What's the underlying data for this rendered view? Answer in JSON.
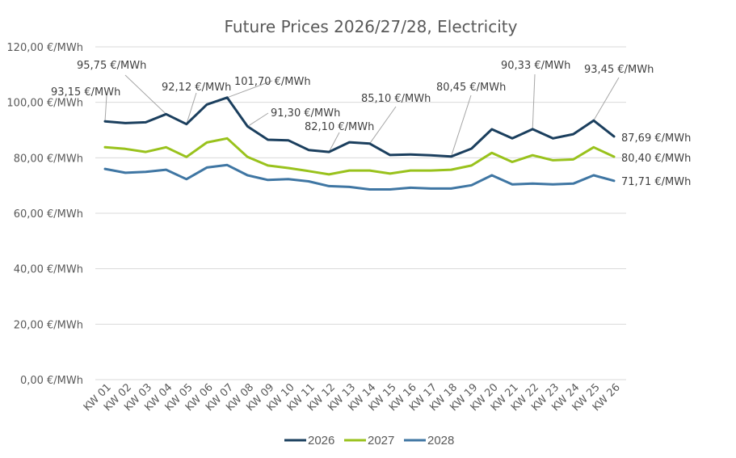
{
  "chart_data": {
    "type": "line",
    "title": "Future Prices 2026/27/28, Electricity",
    "xlabel": "",
    "ylabel": "",
    "ylim": [
      0,
      120
    ],
    "yticks": [
      0,
      20,
      40,
      60,
      80,
      100,
      120
    ],
    "ytick_labels": [
      "0,00 €/MWh",
      "20,00 €/MWh",
      "40,00 €/MWh",
      "60,00 €/MWh",
      "80,00 €/MWh",
      "100,00 €/MWh",
      "120,00 €/MWh"
    ],
    "grid": true,
    "legend_position": "bottom",
    "categories": [
      "KW 01",
      "KW 02",
      "KW 03",
      "KW 04",
      "KW 05",
      "KW 06",
      "KW 07",
      "KW 08",
      "KW 09",
      "KW 10",
      "KW 11",
      "KW 12",
      "KW 13",
      "KW 14",
      "KW 15",
      "KW 16",
      "KW 17",
      "KW 18",
      "KW 19",
      "KW 20",
      "KW 21",
      "KW 22",
      "KW 23",
      "KW 24",
      "KW 25",
      "KW 26"
    ],
    "series": [
      {
        "name": "2026",
        "color": "#1b3f5e",
        "values": [
          93.15,
          92.5,
          92.8,
          95.75,
          92.12,
          99.2,
          101.7,
          91.3,
          86.5,
          86.3,
          82.8,
          82.1,
          85.6,
          85.1,
          81.0,
          81.2,
          80.9,
          80.45,
          83.3,
          90.3,
          87.0,
          90.33,
          87.0,
          88.5,
          93.45,
          87.69
        ]
      },
      {
        "name": "2027",
        "color": "#99c21c",
        "values": [
          83.8,
          83.2,
          82.1,
          83.8,
          80.3,
          85.5,
          87.0,
          80.3,
          77.2,
          76.3,
          75.2,
          74.0,
          75.4,
          75.4,
          74.3,
          75.4,
          75.4,
          75.7,
          77.2,
          81.8,
          78.5,
          80.9,
          79.1,
          79.4,
          83.8,
          80.4
        ]
      },
      {
        "name": "2028",
        "color": "#3f76a3",
        "values": [
          76.0,
          74.6,
          74.9,
          75.7,
          72.3,
          76.5,
          77.4,
          73.7,
          72.0,
          72.3,
          71.5,
          69.8,
          69.5,
          68.6,
          68.6,
          69.2,
          68.9,
          68.9,
          70.1,
          73.7,
          70.4,
          70.7,
          70.4,
          70.7,
          73.7,
          71.71
        ]
      }
    ],
    "annotations": [
      {
        "series": "2026",
        "index": 0,
        "text": "93,15 €/MWh"
      },
      {
        "series": "2026",
        "index": 3,
        "text": "95,75 €/MWh"
      },
      {
        "series": "2026",
        "index": 4,
        "text": "92,12 €/MWh"
      },
      {
        "series": "2026",
        "index": 6,
        "text": "101,70 €/MWh"
      },
      {
        "series": "2026",
        "index": 7,
        "text": "91,30 €/MWh"
      },
      {
        "series": "2026",
        "index": 11,
        "text": "82,10 €/MWh"
      },
      {
        "series": "2026",
        "index": 13,
        "text": "85,10 €/MWh"
      },
      {
        "series": "2026",
        "index": 17,
        "text": "80,45 €/MWh"
      },
      {
        "series": "2026",
        "index": 21,
        "text": "90,33 €/MWh"
      },
      {
        "series": "2026",
        "index": 24,
        "text": "93,45 €/MWh"
      },
      {
        "series": "2026",
        "index": 25,
        "text": "87,69 €/MWh"
      },
      {
        "series": "2027",
        "index": 25,
        "text": "80,40 €/MWh"
      },
      {
        "series": "2028",
        "index": 25,
        "text": "71,71 €/MWh"
      }
    ]
  }
}
